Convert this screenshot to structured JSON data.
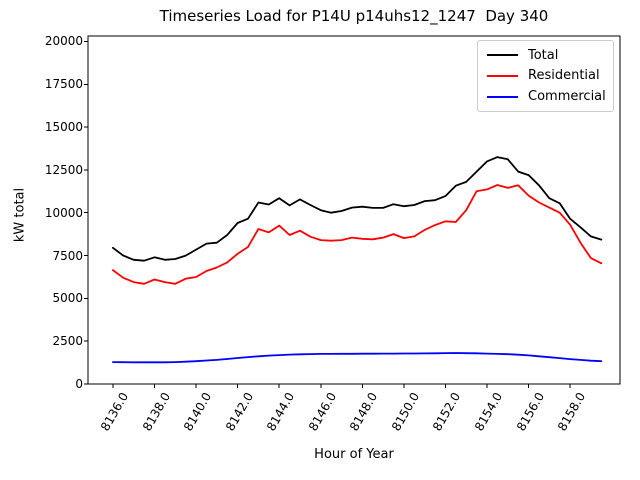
{
  "chart_data": {
    "type": "line",
    "title": "Timeseries Load for P14U p14uhs12_1247  Day 340",
    "xlabel": "Hour of Year",
    "ylabel": "kW total",
    "xlim": [
      8134.8,
      8160.4
    ],
    "ylim": [
      0,
      20320
    ],
    "grid": false,
    "legend_position": "upper right",
    "legend_border_color": "#cccccc",
    "axis_color": "#000000",
    "x_ticks": {
      "values": [
        8136,
        8138,
        8140,
        8142,
        8144,
        8146,
        8148,
        8150,
        8152,
        8154,
        8156,
        8158
      ],
      "labels": [
        "8136.0",
        "8138.0",
        "8140.0",
        "8142.0",
        "8144.0",
        "8146.0",
        "8148.0",
        "8150.0",
        "8152.0",
        "8154.0",
        "8156.0",
        "8158.0"
      ]
    },
    "y_ticks": {
      "values": [
        0,
        2500,
        5000,
        7500,
        10000,
        12500,
        15000,
        17500,
        20000
      ],
      "labels": [
        "0",
        "2500",
        "5000",
        "7500",
        "10000",
        "12500",
        "15000",
        "17500",
        "20000"
      ]
    },
    "x": [
      8136.0,
      8136.5,
      8137.0,
      8137.5,
      8138.0,
      8138.5,
      8139.0,
      8139.5,
      8140.0,
      8140.5,
      8141.0,
      8141.5,
      8142.0,
      8142.5,
      8143.0,
      8143.5,
      8144.0,
      8144.5,
      8145.0,
      8145.5,
      8146.0,
      8146.5,
      8147.0,
      8147.5,
      8148.0,
      8148.5,
      8149.0,
      8149.5,
      8150.0,
      8150.5,
      8151.0,
      8151.5,
      8152.0,
      8152.5,
      8153.0,
      8153.5,
      8154.0,
      8154.5,
      8155.0,
      8155.5,
      8156.0,
      8156.5,
      8157.0,
      8157.5,
      8158.0,
      8158.5,
      8159.0,
      8159.5
    ],
    "series": [
      {
        "name": "Total",
        "color": "#000000",
        "values": [
          7950,
          7500,
          7250,
          7200,
          7400,
          7250,
          7300,
          7500,
          7850,
          8200,
          8250,
          8700,
          9400,
          9650,
          10600,
          10480,
          10850,
          10430,
          10780,
          10450,
          10150,
          10000,
          10100,
          10300,
          10350,
          10280,
          10280,
          10500,
          10380,
          10450,
          10680,
          10730,
          10970,
          11580,
          11800,
          12400,
          13000,
          13250,
          13120,
          12400,
          12200,
          11600,
          10850,
          10550,
          9650,
          9150,
          8620,
          8430
        ]
      },
      {
        "name": "Residential",
        "color": "#ff0000",
        "values": [
          6650,
          6200,
          5950,
          5850,
          6100,
          5950,
          5850,
          6150,
          6250,
          6600,
          6800,
          7100,
          7600,
          8000,
          9050,
          8850,
          9250,
          8700,
          8950,
          8600,
          8400,
          8370,
          8400,
          8550,
          8480,
          8450,
          8550,
          8750,
          8520,
          8620,
          9000,
          9280,
          9500,
          9460,
          10150,
          11260,
          11360,
          11620,
          11450,
          11600,
          11000,
          10600,
          10300,
          10000,
          9300,
          8250,
          7350,
          7050
        ]
      },
      {
        "name": "Commercial",
        "color": "#0000ff",
        "values": [
          1280,
          1275,
          1270,
          1265,
          1265,
          1270,
          1280,
          1300,
          1330,
          1370,
          1410,
          1460,
          1520,
          1570,
          1620,
          1660,
          1690,
          1715,
          1735,
          1745,
          1755,
          1760,
          1765,
          1765,
          1770,
          1770,
          1775,
          1775,
          1780,
          1780,
          1785,
          1795,
          1805,
          1810,
          1800,
          1790,
          1775,
          1760,
          1740,
          1710,
          1670,
          1620,
          1565,
          1510,
          1455,
          1405,
          1360,
          1330
        ]
      }
    ]
  }
}
